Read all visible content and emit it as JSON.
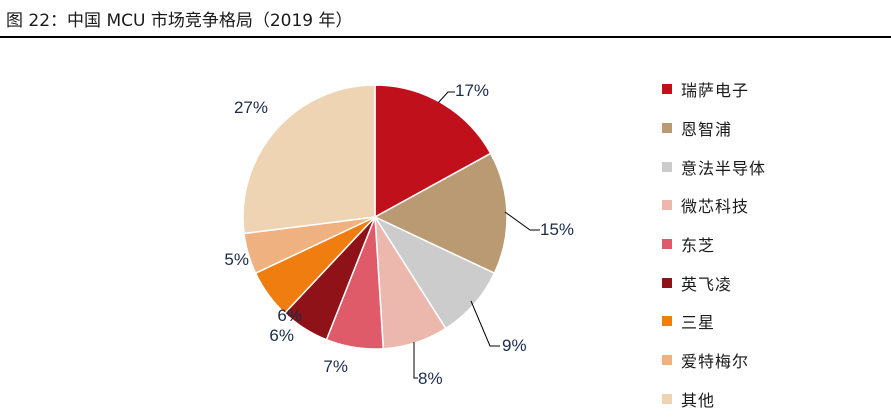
{
  "figure": {
    "title": "图 22：中国 MCU 市场竞争格局（2019 年）"
  },
  "chart_data": {
    "type": "pie",
    "title": "",
    "start_angle_deg": 0,
    "direction": "clockwise",
    "slices": [
      {
        "label": "瑞萨电子",
        "value": 17,
        "display": "17%",
        "color": "#c0101c"
      },
      {
        "label": "恩智浦",
        "value": 15,
        "display": "15%",
        "color": "#b99a72"
      },
      {
        "label": "意法半导体",
        "value": 9,
        "display": "9%",
        "color": "#cccccc"
      },
      {
        "label": "微芯科技",
        "value": 8,
        "display": "8%",
        "color": "#ecb8ae"
      },
      {
        "label": "东芝",
        "value": 7,
        "display": "7%",
        "color": "#df5b6a"
      },
      {
        "label": "英飞凌",
        "value": 6,
        "display": "6%",
        "color": "#8e1217"
      },
      {
        "label": "三星",
        "value": 6,
        "display": "6%",
        "color": "#ef7d0f"
      },
      {
        "label": "爱特梅尔",
        "value": 5,
        "display": "5%",
        "color": "#efb17f"
      },
      {
        "label": "其他",
        "value": 27,
        "display": "27%",
        "color": "#efd4b4"
      }
    ],
    "legend": {
      "position": "right"
    }
  }
}
